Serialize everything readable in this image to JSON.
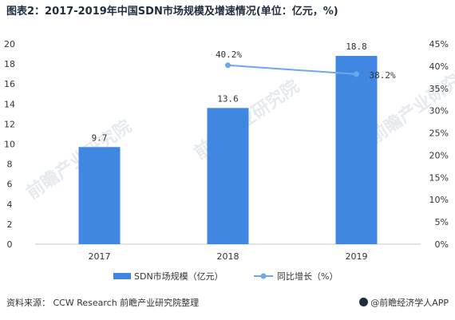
{
  "title": "图表2：2017-2019年中国SDN市场规模及增速情况(单位：亿元，%)",
  "source_text": "资料来源： CCW Research 前瞻产业研究院整理",
  "brand_text": "@前瞻经济学人APP",
  "watermark_text": "前瞻产业研究院",
  "colors": {
    "bar": "#3f87e0",
    "line": "#6fa8ea",
    "axis": "#c9c9c9"
  },
  "chart_data": {
    "type": "bar",
    "categories": [
      "2017",
      "2018",
      "2019"
    ],
    "series": [
      {
        "name": "SDN市场规模（亿元）",
        "type": "bar",
        "axis": "left",
        "values": [
          9.7,
          13.6,
          18.8
        ],
        "labels": [
          "9.7",
          "13.6",
          "18.8"
        ]
      },
      {
        "name": "同比增长（%）",
        "type": "line",
        "axis": "right",
        "values": [
          null,
          40.2,
          38.2
        ],
        "labels": [
          "",
          "40.2%",
          "38.2%"
        ]
      }
    ],
    "y_left": {
      "min": 0,
      "max": 20,
      "ticks": [
        "0",
        "2",
        "4",
        "6",
        "8",
        "10",
        "12",
        "14",
        "16",
        "18",
        "20"
      ]
    },
    "y_right": {
      "min": 0,
      "max": 45,
      "ticks": [
        "0%",
        "5%",
        "10%",
        "15%",
        "20%",
        "25%",
        "30%",
        "35%",
        "40%",
        "45%"
      ]
    },
    "legend_position": "bottom",
    "grid": false
  }
}
